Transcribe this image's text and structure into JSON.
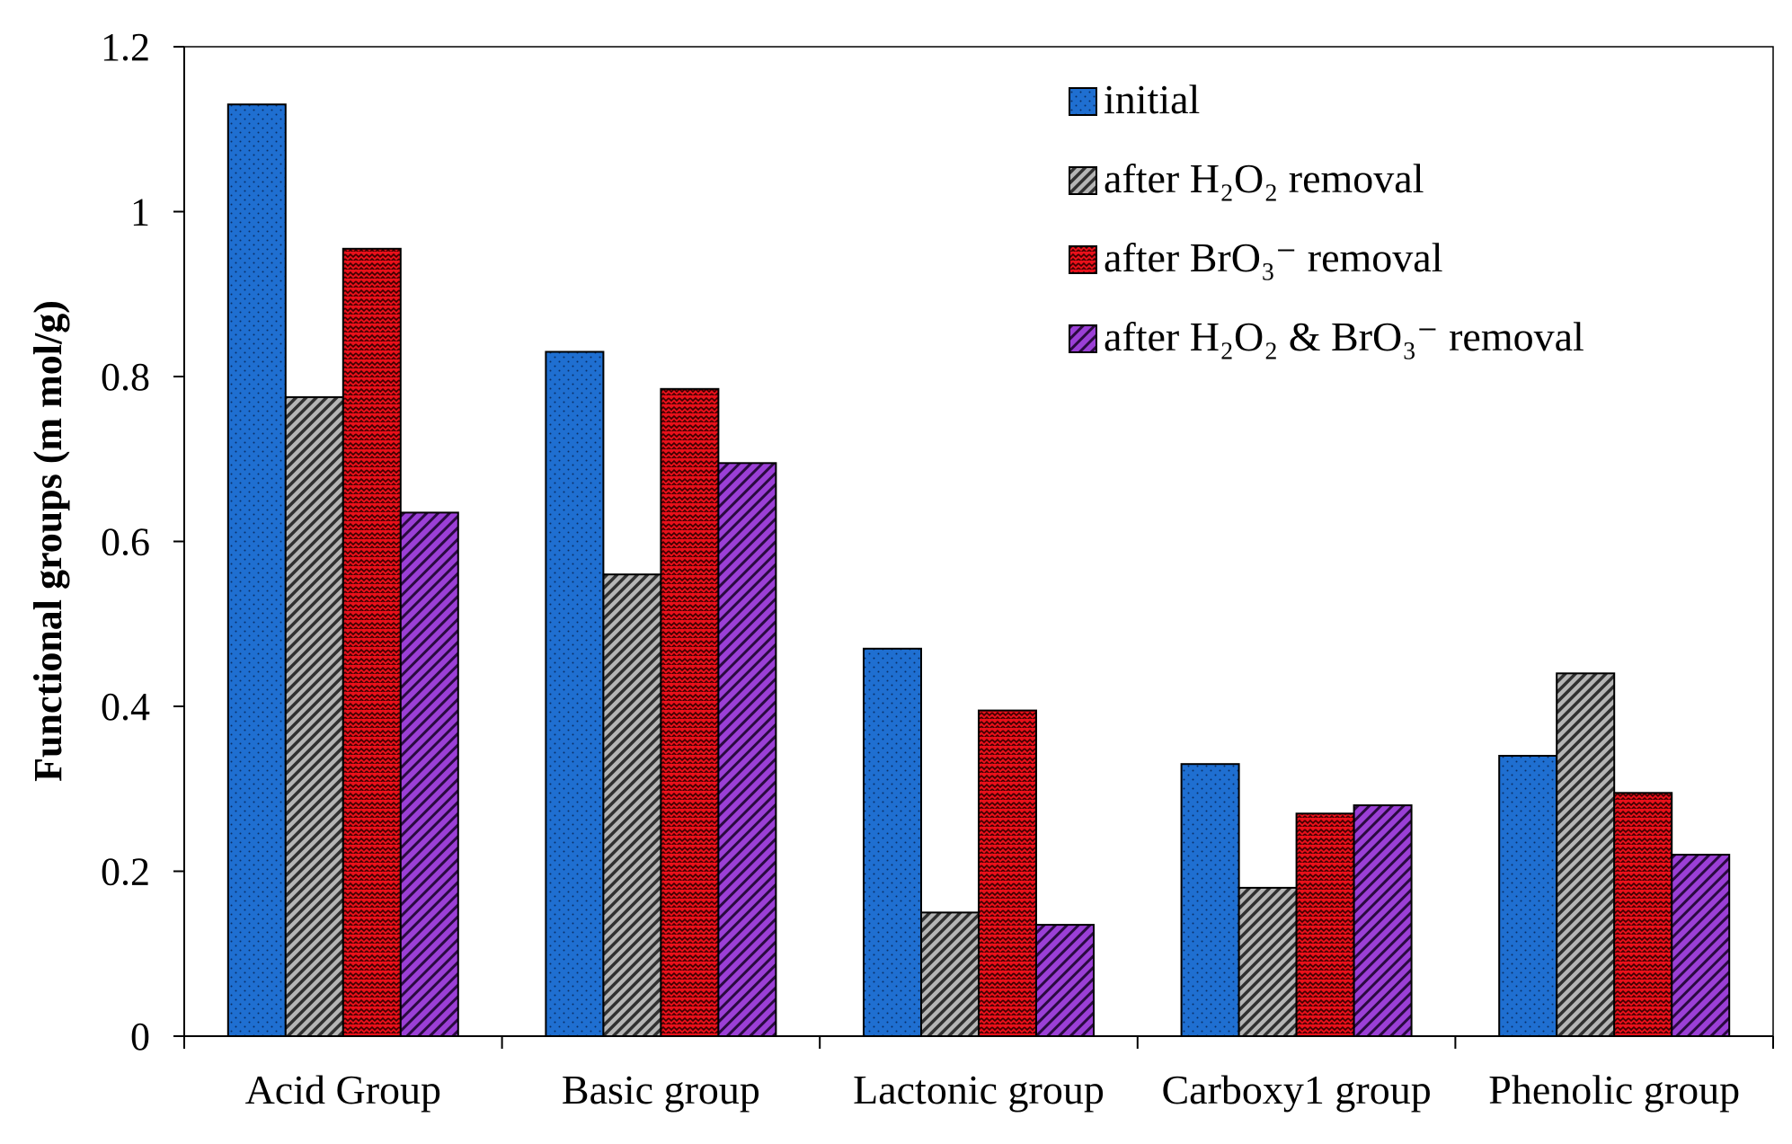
{
  "chart_data": {
    "type": "bar",
    "title": "",
    "xlabel": "",
    "ylabel": "Functional groups (m mol/g)",
    "ylim": [
      0,
      1.2
    ],
    "yticks": [
      0,
      0.2,
      0.4,
      0.6,
      0.8,
      1,
      1.2
    ],
    "ytick_labels": [
      "0",
      "0.2",
      "0.4",
      "0.6",
      "0.8",
      "1",
      "1.2"
    ],
    "categories": [
      "Acid Group",
      "Basic group",
      "Lactonic group",
      "Carboxy1 group",
      "Phenolic group"
    ],
    "grid": false,
    "legend_position": "top-right",
    "series": [
      {
        "name": "initial",
        "values": [
          1.13,
          0.83,
          0.47,
          0.33,
          0.34
        ],
        "color": "#1f6fd1",
        "pattern": "dots"
      },
      {
        "name": "after H₂O₂ removal",
        "values": [
          0.775,
          0.56,
          0.15,
          0.18,
          0.44
        ],
        "color": "#9a9a9a",
        "pattern": "diag-dense"
      },
      {
        "name": "after BrO₃⁻ removal",
        "values": [
          0.955,
          0.785,
          0.395,
          0.27,
          0.295
        ],
        "color": "#e8101a",
        "pattern": "zigzag"
      },
      {
        "name": "after H₂O₂ & BrO₃⁻ removal",
        "values": [
          0.635,
          0.695,
          0.135,
          0.28,
          0.22
        ],
        "color": "#8c2fc4",
        "pattern": "diag"
      }
    ]
  }
}
